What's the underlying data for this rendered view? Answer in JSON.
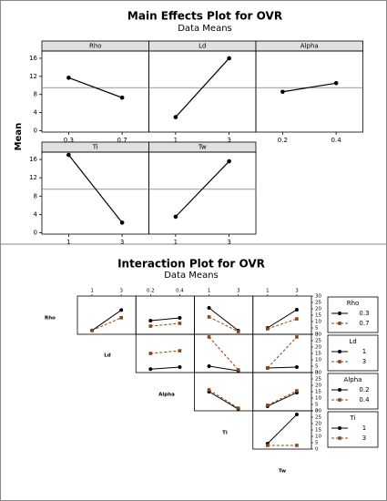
{
  "chart_data": [
    {
      "type": "main-effects",
      "title": "Main Effects Plot for OVR",
      "subtitle": "Data Means",
      "ylabel": "Mean",
      "ylim": [
        -0.3,
        17.6
      ],
      "yticks": [
        0,
        4,
        8,
        12,
        16
      ],
      "reference_line": 9.5,
      "color": "#000000",
      "panels": [
        {
          "name": "Rho",
          "categories": [
            "0.3",
            "0.7"
          ],
          "values": [
            11.7,
            7.3
          ]
        },
        {
          "name": "Ld",
          "categories": [
            "1",
            "3"
          ],
          "values": [
            3.0,
            16.0
          ]
        },
        {
          "name": "Alpha",
          "categories": [
            "0.2",
            "0.4"
          ],
          "values": [
            8.6,
            10.5
          ]
        },
        {
          "name": "Ti",
          "categories": [
            "1",
            "3"
          ],
          "values": [
            17.0,
            2.2
          ]
        },
        {
          "name": "Tw",
          "categories": [
            "1",
            "3"
          ],
          "values": [
            3.5,
            15.6
          ]
        }
      ]
    },
    {
      "type": "interaction",
      "title": "Interaction Plot for OVR",
      "subtitle": "Data Means",
      "ylim": [
        0,
        30
      ],
      "yticks": [
        0,
        5,
        10,
        15,
        20,
        25,
        30
      ],
      "colors": [
        "#000000",
        "#8b4513"
      ],
      "factors": [
        "Rho",
        "Ld",
        "Alpha",
        "Ti",
        "Tw"
      ],
      "levels": [
        [
          "0.3",
          "0.7"
        ],
        [
          "1",
          "3"
        ],
        [
          "0.2",
          "0.4"
        ],
        [
          "1",
          "3"
        ],
        [
          "1",
          "3"
        ]
      ],
      "rows": [
        [
          [
            [
              3,
              19
            ],
            [
              3,
              13
            ]
          ],
          [
            [
              10.7,
              12.9
            ],
            [
              6.4,
              8.6
            ]
          ],
          [
            [
              20.7,
              2.9
            ],
            [
              13.6,
              2.1
            ]
          ],
          [
            [
              5,
              19.3
            ],
            [
              4.3,
              12.1
            ]
          ]
        ],
        [
          [
            [
              2.7,
              4.3
            ],
            [
              15,
              17.1
            ]
          ],
          [
            [
              5,
              1.4
            ],
            [
              27.9,
              2.1
            ]
          ],
          [
            [
              3.6,
              4.3
            ],
            [
              3.6,
              27.9
            ]
          ]
        ],
        [
          [
            [
              15,
              1.4
            ],
            [
              16.4,
              2.1
            ]
          ],
          [
            [
              3.6,
              14.3
            ],
            [
              4.3,
              15.7
            ]
          ]
        ],
        [
          [
            [
              4.3,
              27.1
            ],
            [
              2.9,
              2.9
            ]
          ]
        ]
      ]
    }
  ]
}
